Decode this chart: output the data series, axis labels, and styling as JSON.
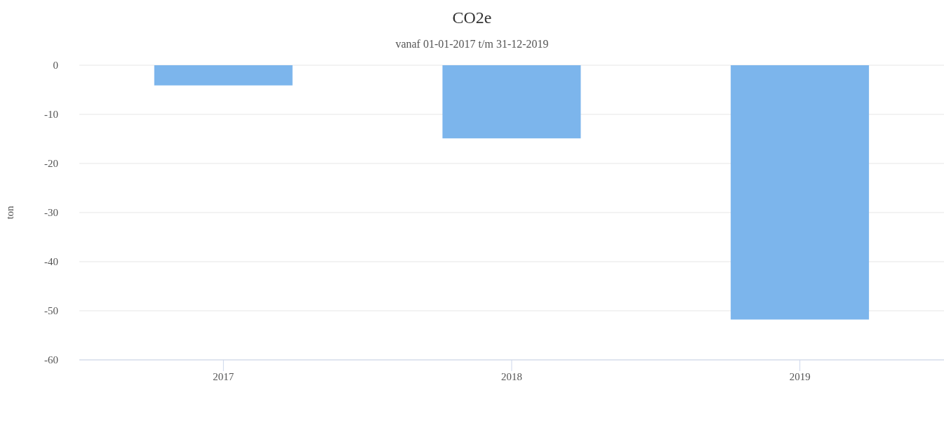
{
  "chart_data": {
    "type": "bar",
    "title": "CO2e",
    "subtitle": "vanaf 01-01-2017 t/m 31-12-2019",
    "ylabel": "ton",
    "categories": [
      "2017",
      "2018",
      "2019"
    ],
    "series": [
      {
        "color": "#7cb5ec",
        "values": [
          -4.1,
          -14.9,
          -51.8
        ]
      }
    ],
    "ylim": [
      -60,
      0
    ],
    "yticks": [
      -60,
      -50,
      -40,
      -30,
      -20,
      -10,
      0
    ],
    "grid": "y"
  }
}
